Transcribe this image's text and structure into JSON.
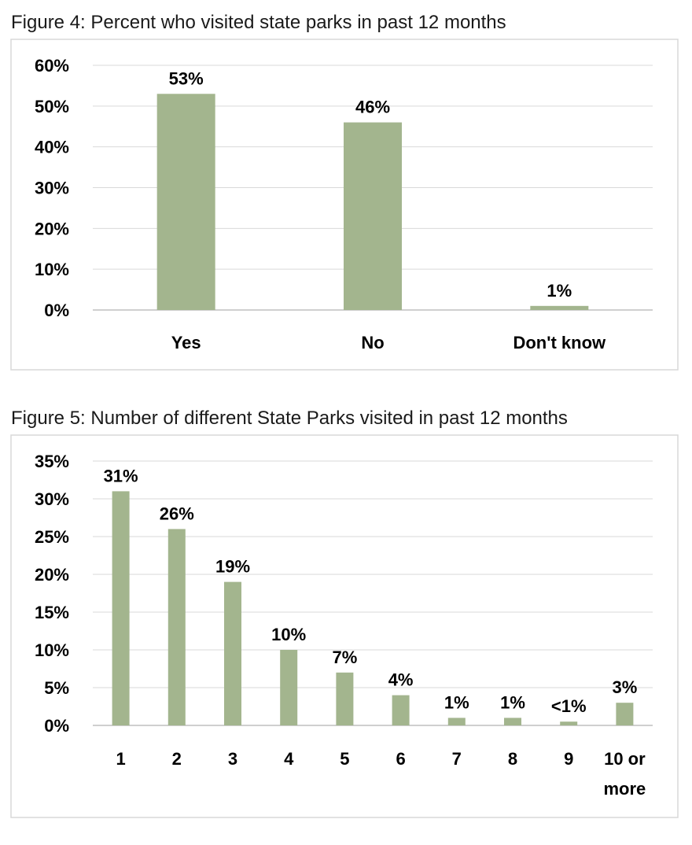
{
  "chart_data": [
    {
      "type": "bar",
      "title": "Figure 4: Percent who visited state parks in past 12 months",
      "categories": [
        "Yes",
        "No",
        "Don't know"
      ],
      "values": [
        53,
        46,
        1
      ],
      "data_labels": [
        "53%",
        "46%",
        "1%"
      ],
      "ylim": [
        0,
        60
      ],
      "yticks": [
        "0%",
        "10%",
        "20%",
        "30%",
        "40%",
        "50%",
        "60%"
      ],
      "grid": true,
      "bar_color": "#a3b58e"
    },
    {
      "type": "bar",
      "title": "Figure 5: Number of different State Parks visited in past 12 months",
      "categories": [
        "1",
        "2",
        "3",
        "4",
        "5",
        "6",
        "7",
        "8",
        "9",
        "10 or more"
      ],
      "values": [
        31,
        26,
        19,
        10,
        7,
        4,
        1,
        1,
        0.5,
        3
      ],
      "data_labels": [
        "31%",
        "26%",
        "19%",
        "10%",
        "7%",
        "4%",
        "1%",
        "1%",
        "<1%",
        "3%"
      ],
      "ylim": [
        0,
        35
      ],
      "yticks": [
        "0%",
        "5%",
        "10%",
        "15%",
        "20%",
        "25%",
        "30%",
        "35%"
      ],
      "grid": true,
      "bar_color": "#a3b58e"
    }
  ]
}
